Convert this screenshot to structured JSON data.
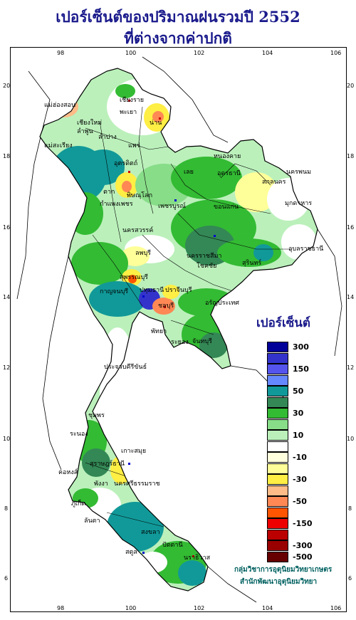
{
  "title": {
    "line1": "เปอร์เซ็นต์ของปริมาณฝนรวมปี 2552",
    "line2": "ที่ต่างจากค่าปกติ"
  },
  "axes": {
    "x_ticks": [
      "98",
      "100",
      "102",
      "104",
      "106"
    ],
    "y_ticks": [
      "20",
      "18",
      "16",
      "14",
      "12",
      "10",
      "8",
      "6"
    ]
  },
  "legend": {
    "title": "เปอร์เซ็นต์",
    "items": [
      {
        "label": "300",
        "color": "#000099"
      },
      {
        "label": "",
        "color": "#3333cc"
      },
      {
        "label": "150",
        "color": "#5555ee"
      },
      {
        "label": "",
        "color": "#6688ff"
      },
      {
        "label": "50",
        "color": "#119999"
      },
      {
        "label": "",
        "color": "#338855"
      },
      {
        "label": "30",
        "color": "#33bb33"
      },
      {
        "label": "",
        "color": "#88dd88"
      },
      {
        "label": "10",
        "color": "#bbf0bb"
      },
      {
        "label": "",
        "color": "#ffffff"
      },
      {
        "label": "-10",
        "color": "#ffffdd"
      },
      {
        "label": "",
        "color": "#ffff99"
      },
      {
        "label": "-30",
        "color": "#ffee44"
      },
      {
        "label": "",
        "color": "#ffbb88"
      },
      {
        "label": "-50",
        "color": "#ff8855"
      },
      {
        "label": "",
        "color": "#ff5500"
      },
      {
        "label": "-150",
        "color": "#ee0000"
      },
      {
        "label": "",
        "color": "#bb0000"
      },
      {
        "label": "-300",
        "color": "#990000"
      },
      {
        "label": "-500",
        "color": "#660000"
      }
    ]
  },
  "credit": {
    "line1": "กลุ่มวิชาการอุตุนิยมวิทยาเกษตร",
    "line2": "สำนักพัฒนาอุตุนิยมวิทยา"
  },
  "places": [
    {
      "name": "เชียงราย"
    },
    {
      "name": "แม่ฮ่องสอน"
    },
    {
      "name": "พะเยา"
    },
    {
      "name": "น่าน"
    },
    {
      "name": "เชียงใหม่"
    },
    {
      "name": "ลำพูน"
    },
    {
      "name": "ลำปาง"
    },
    {
      "name": "แพร่"
    },
    {
      "name": "แม่สะเรียง"
    },
    {
      "name": "อุตรดิตถ์"
    },
    {
      "name": "หนองคาย"
    },
    {
      "name": "เลย"
    },
    {
      "name": "อุดรธานี"
    },
    {
      "name": "นครพนม"
    },
    {
      "name": "สกลนคร"
    },
    {
      "name": "ตาก"
    },
    {
      "name": "พิษณุโลก"
    },
    {
      "name": "มุกดาหาร"
    },
    {
      "name": "กำแพงเพชร"
    },
    {
      "name": "เพชรบูรณ์"
    },
    {
      "name": "ขอนแก่น"
    },
    {
      "name": "นครสวรรค์"
    },
    {
      "name": "อุบลราชธานี"
    },
    {
      "name": "ลพบุรี"
    },
    {
      "name": "นครราชสีมา"
    },
    {
      "name": "สุรินทร์"
    },
    {
      "name": "โชคชัย"
    },
    {
      "name": "สุพรรณบุรี"
    },
    {
      "name": "ปราจีนบุรี"
    },
    {
      "name": "กาญจนบุรี"
    },
    {
      "name": "ปทุมธานี"
    },
    {
      "name": "อรัญประเทศ"
    },
    {
      "name": "ชลบุรี"
    },
    {
      "name": "พัทยา"
    },
    {
      "name": "ระยอง"
    },
    {
      "name": "จันทบุรี"
    },
    {
      "name": "ประจวบคีรีขันธ์"
    },
    {
      "name": "ชุมพร"
    },
    {
      "name": "เกาะสมุย"
    },
    {
      "name": "ระนอง"
    },
    {
      "name": "สุราษฎร์ธานี"
    },
    {
      "name": "คอหงส์"
    },
    {
      "name": "พังงา"
    },
    {
      "name": "นครศรีธรรมราช"
    },
    {
      "name": "ภูเก็ต"
    },
    {
      "name": "ลันตา"
    },
    {
      "name": "สงขลา"
    },
    {
      "name": "ปัตตานี"
    },
    {
      "name": "นราธิวาส"
    },
    {
      "name": "สตูล"
    }
  ]
}
